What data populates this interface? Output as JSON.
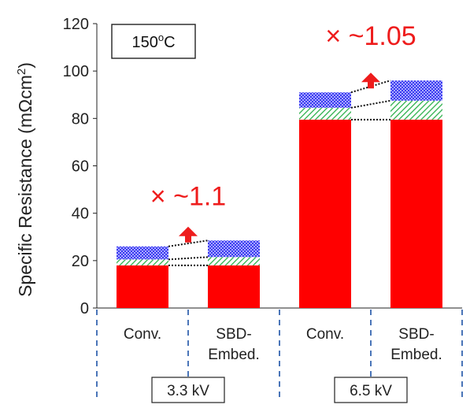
{
  "chart_data": {
    "type": "bar",
    "stacked": true,
    "ylabel": "Specific Resistance (mΩcm²)",
    "ylabel_main": "Specific Resistance (m",
    "ylabel_omega": "Ω",
    "ylabel_cm": "cm",
    "ylabel_sup": "2",
    "ylabel_close": ")",
    "ylim": [
      0,
      120
    ],
    "yticks": [
      "0",
      "20",
      "40",
      "60",
      "80",
      "100",
      "120"
    ],
    "grid": false,
    "temperature_label": "150",
    "temperature_sup": "o",
    "temperature_unit": "C",
    "categories": [
      "Conv.",
      "SBD-Embed.",
      "Conv.",
      "SBD-Embed."
    ],
    "category_lines": [
      [
        "Conv."
      ],
      [
        "SBD-",
        "Embed."
      ],
      [
        "Conv."
      ],
      [
        "SBD-",
        "Embed."
      ]
    ],
    "groups": [
      {
        "label": "3.3 kV",
        "ratio": "× ~1.1"
      },
      {
        "label": "6.5 kV",
        "ratio": "× ~1.05"
      }
    ],
    "series": [
      {
        "color": "#ff0000",
        "pattern": "solid",
        "values": [
          18,
          18,
          79.5,
          79.5
        ]
      },
      {
        "color": "#2db04b",
        "pattern": "diagonal-hatch",
        "values": [
          2.5,
          3.5,
          5,
          8
        ]
      },
      {
        "color": "#4d4dff",
        "pattern": "dotted",
        "values": [
          5.5,
          7,
          6.5,
          8.5
        ]
      }
    ]
  }
}
